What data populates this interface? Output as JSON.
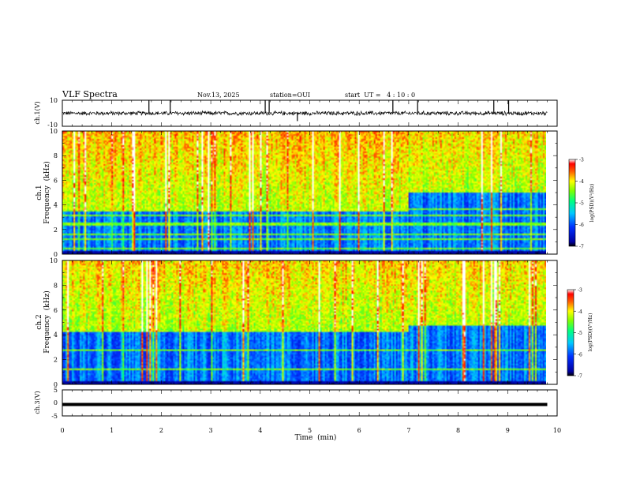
{
  "header": {
    "title": "VLF Spectra",
    "date": "Nov.13, 2025",
    "station": "station=OUI",
    "start": "start  UT =   4 : 10 : 0"
  },
  "chart_data": [
    {
      "type": "line",
      "name": "ch1-waveform",
      "ylabel": "ch.1(V)",
      "ylim": [
        -10,
        10
      ],
      "yticks": [
        "10",
        "-10"
      ],
      "xlim": [
        0,
        10
      ],
      "description_values": {
        "baseline": 0,
        "typical_amplitude": 1.5,
        "max_spike": 10
      },
      "spike_times": [
        1.75,
        2.18,
        4.1,
        4.18,
        4.75,
        6.68,
        7.18,
        8.72,
        9.02
      ],
      "ends_at": 9.8
    },
    {
      "type": "heatmap",
      "name": "ch1-spectrogram",
      "ylabel": "ch.1\nFrequency  (kHz)",
      "ylabel_lines": [
        "ch.1",
        "Frequency  (kHz)"
      ],
      "ylim": [
        0,
        10
      ],
      "yticks": [
        "0",
        "2",
        "4",
        "6",
        "8",
        "10"
      ],
      "xlim": [
        0,
        9.8
      ],
      "colorbar": {
        "label": "log(PSD)(V²/Hz)",
        "range": [
          -7,
          -3
        ],
        "ticks": [
          "-3",
          "-4",
          "-5",
          "-6",
          "-7"
        ]
      },
      "features": {
        "noise_floor_before_7min_kHz": 3.5,
        "noise_floor_after_7min_kHz": 5.0,
        "strong_lines_kHz": [
          0.4,
          1.2,
          1.6,
          2.4,
          3.1,
          3.6
        ]
      }
    },
    {
      "type": "heatmap",
      "name": "ch2-spectrogram",
      "ylabel": "ch.2\nFrequency  (kHz)",
      "ylabel_lines": [
        "ch.2",
        "Frequency  (kHz)"
      ],
      "ylim": [
        0,
        10
      ],
      "yticks": [
        "0",
        "2",
        "4",
        "6",
        "8",
        "10"
      ],
      "xlim": [
        0,
        9.8
      ],
      "colorbar": {
        "label": "log(PSD)(V²/Hz)",
        "range": [
          -7,
          -3
        ],
        "ticks": [
          "-3",
          "-4",
          "-5",
          "-6",
          "-7"
        ]
      },
      "features": {
        "noise_floor_before_7min_kHz": 4.2,
        "noise_floor_after_7min_kHz": 4.8,
        "strong_lines_kHz": [
          1.2,
          2.7,
          4.9
        ]
      }
    },
    {
      "type": "line",
      "name": "ch3-waveform",
      "ylabel": "ch.3(V)",
      "ylim": [
        -5,
        5
      ],
      "yticks": [
        "5",
        "0",
        "-5"
      ],
      "xlim": [
        0,
        10
      ],
      "series": [
        {
          "name": "ch.3",
          "constant_value": -0.6,
          "x_range": [
            0,
            9.8
          ]
        }
      ]
    }
  ],
  "xaxis": {
    "label": "Time  (min)",
    "ticks": [
      "0",
      "1",
      "2",
      "3",
      "4",
      "5",
      "6",
      "7",
      "8",
      "9",
      "10"
    ],
    "range": [
      0,
      10
    ]
  },
  "colors": {
    "colormap": [
      "#000080",
      "#0000ff",
      "#0080ff",
      "#00ffff",
      "#00ff80",
      "#80ff00",
      "#ffff00",
      "#ff8000",
      "#ff0000",
      "#800000"
    ]
  }
}
